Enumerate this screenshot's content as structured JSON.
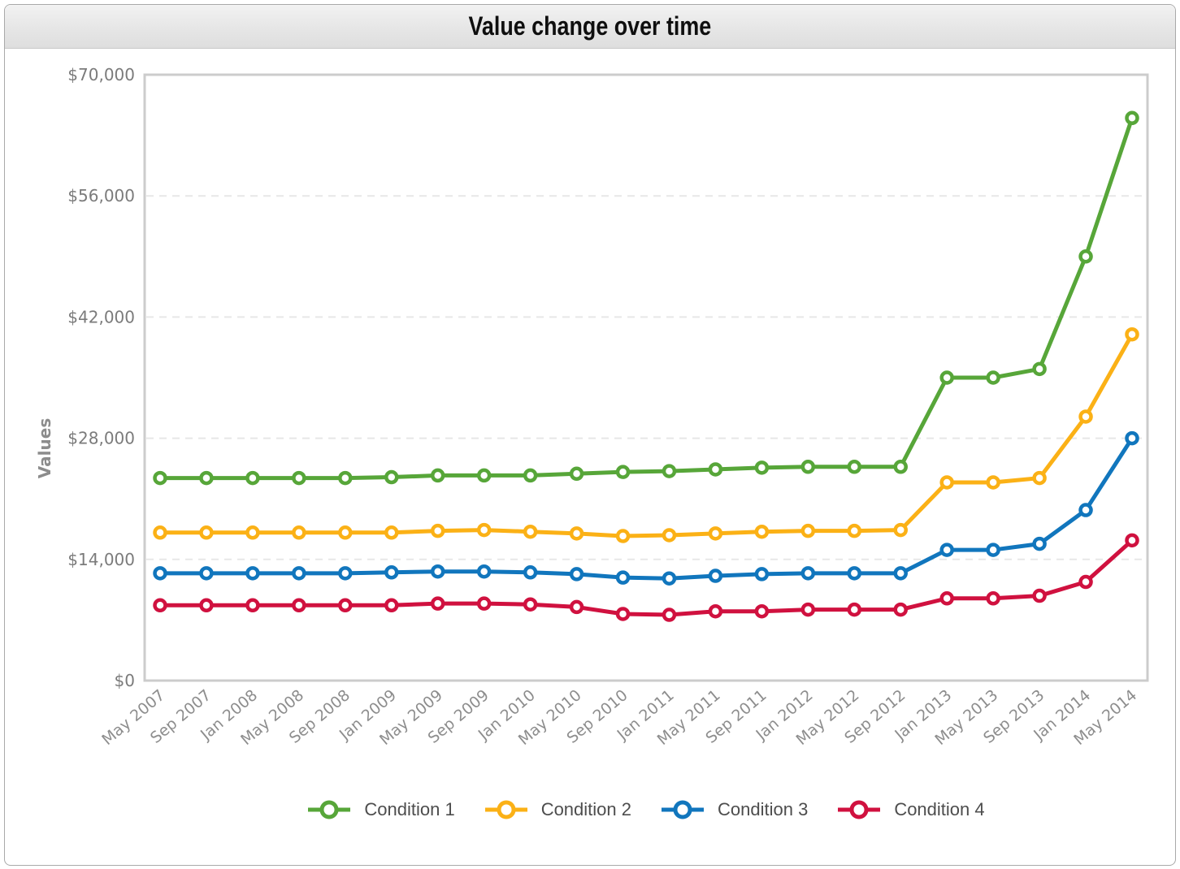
{
  "window": {
    "title": "Value change over time"
  },
  "chart_data": {
    "type": "line",
    "title": "Value change over time",
    "xlabel": "",
    "ylabel": "Values",
    "ylim": [
      0,
      70000
    ],
    "grid": "horizontal-dashed",
    "legend_position": "bottom",
    "marker": "open-circle",
    "y_ticks": [
      {
        "value": 0,
        "label": "$0"
      },
      {
        "value": 14000,
        "label": "$14,000"
      },
      {
        "value": 28000,
        "label": "$28,000"
      },
      {
        "value": 42000,
        "label": "$42,000"
      },
      {
        "value": 56000,
        "label": "$56,000"
      },
      {
        "value": 70000,
        "label": "$70,000"
      }
    ],
    "categories": [
      "May 2007",
      "Sep 2007",
      "Jan 2008",
      "May 2008",
      "Sep 2008",
      "Jan 2009",
      "May 2009",
      "Sep 2009",
      "Jan 2010",
      "May 2010",
      "Sep 2010",
      "Jan 2011",
      "May 2011",
      "Sep 2011",
      "Jan 2012",
      "May 2012",
      "Sep 2012",
      "Jan 2013",
      "May 2013",
      "Sep 2013",
      "Jan 2014",
      "May 2014"
    ],
    "series": [
      {
        "name": "Condition 1",
        "color": "#57a639",
        "values": [
          23400,
          23400,
          23400,
          23400,
          23400,
          23500,
          23700,
          23700,
          23700,
          23900,
          24100,
          24200,
          24400,
          24600,
          24700,
          24700,
          24700,
          35000,
          35000,
          36000,
          49000,
          65000
        ]
      },
      {
        "name": "Condition 2",
        "color": "#fbb116",
        "values": [
          17100,
          17100,
          17100,
          17100,
          17100,
          17100,
          17300,
          17400,
          17200,
          17000,
          16700,
          16800,
          17000,
          17200,
          17300,
          17300,
          17400,
          22900,
          22900,
          23400,
          30500,
          40000
        ]
      },
      {
        "name": "Condition 3",
        "color": "#1176bd",
        "values": [
          12400,
          12400,
          12400,
          12400,
          12400,
          12500,
          12600,
          12600,
          12500,
          12300,
          11900,
          11800,
          12100,
          12300,
          12400,
          12400,
          12400,
          15100,
          15100,
          15800,
          19700,
          28000
        ]
      },
      {
        "name": "Condition 4",
        "color": "#d0113f",
        "values": [
          8700,
          8700,
          8700,
          8700,
          8700,
          8700,
          8900,
          8900,
          8800,
          8500,
          7700,
          7600,
          8000,
          8000,
          8200,
          8200,
          8200,
          9500,
          9500,
          9800,
          11400,
          16200
        ]
      }
    ]
  }
}
